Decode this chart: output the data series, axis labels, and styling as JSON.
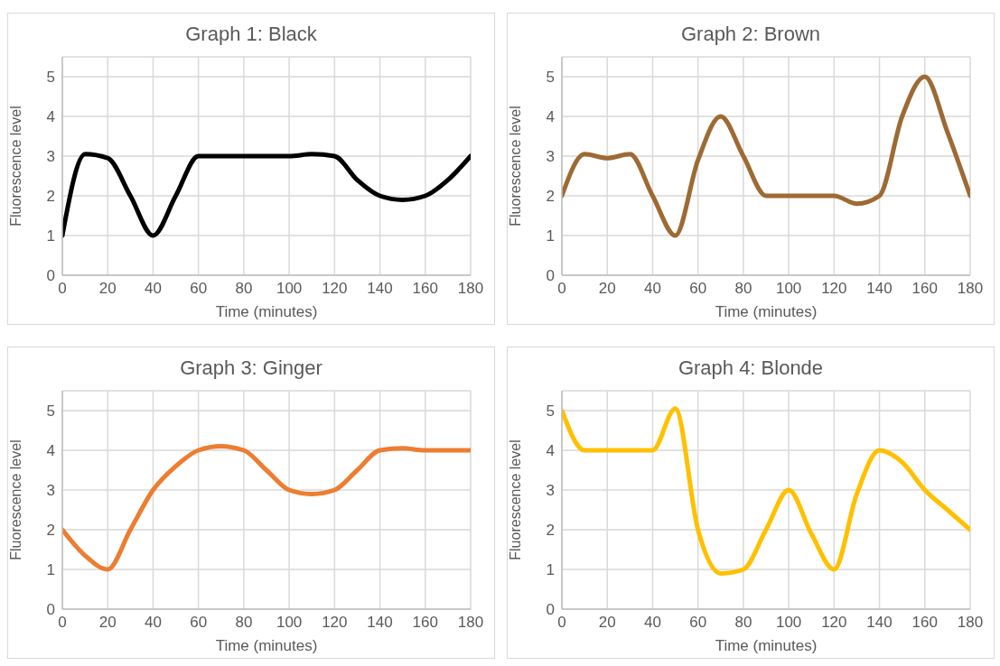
{
  "chart_data": [
    {
      "type": "line",
      "title": "Graph 1: Black",
      "xlabel": "Time (minutes)",
      "ylabel": "Fluorescence level",
      "x": [
        0,
        10,
        20,
        30,
        40,
        50,
        60,
        70,
        80,
        90,
        100,
        110,
        120,
        130,
        140,
        150,
        160,
        170,
        180
      ],
      "xlim": [
        0,
        180
      ],
      "xticks": [
        0,
        20,
        40,
        60,
        80,
        100,
        120,
        140,
        160,
        180
      ],
      "ylim": [
        0,
        5.5
      ],
      "yticks": [
        0,
        1,
        2,
        3,
        4,
        5
      ],
      "grid": true,
      "marker": "none",
      "line_style": "solid",
      "series": [
        {
          "color": "#000000",
          "values": [
            1,
            3.05,
            2.95,
            2,
            1,
            2,
            3,
            3,
            3,
            3,
            3,
            3.05,
            3,
            2.4,
            2,
            1.9,
            2,
            2.4,
            3
          ]
        }
      ]
    },
    {
      "type": "line",
      "title": "Graph 2: Brown",
      "xlabel": "Time (minutes)",
      "ylabel": "Fluorescence level",
      "x": [
        0,
        10,
        20,
        30,
        40,
        50,
        60,
        70,
        80,
        90,
        100,
        110,
        120,
        130,
        140,
        150,
        160,
        170,
        180
      ],
      "xlim": [
        0,
        180
      ],
      "xticks": [
        0,
        20,
        40,
        60,
        80,
        100,
        120,
        140,
        160,
        180
      ],
      "ylim": [
        0,
        5.5
      ],
      "yticks": [
        0,
        1,
        2,
        3,
        4,
        5
      ],
      "grid": true,
      "marker": "none",
      "line_style": "solid",
      "series": [
        {
          "color": "#9e6a34",
          "values": [
            2,
            3.05,
            2.95,
            3.05,
            2,
            1,
            2.9,
            4,
            3,
            2,
            2,
            2,
            2,
            1.8,
            2,
            4,
            5,
            3.6,
            2
          ]
        }
      ]
    },
    {
      "type": "line",
      "title": "Graph 3: Ginger",
      "xlabel": "Time (minutes)",
      "ylabel": "Fluorescence level",
      "x": [
        0,
        10,
        20,
        30,
        40,
        50,
        60,
        70,
        80,
        90,
        100,
        110,
        120,
        130,
        140,
        150,
        160,
        170,
        180
      ],
      "xlim": [
        0,
        180
      ],
      "xticks": [
        0,
        20,
        40,
        60,
        80,
        100,
        120,
        140,
        160,
        180
      ],
      "ylim": [
        0,
        5.5
      ],
      "yticks": [
        0,
        1,
        2,
        3,
        4,
        5
      ],
      "grid": true,
      "marker": "none",
      "line_style": "solid",
      "series": [
        {
          "color": "#ed7d31",
          "values": [
            2,
            1.35,
            1,
            2,
            3,
            3.6,
            4,
            4.1,
            4,
            3.5,
            3,
            2.9,
            3,
            3.5,
            4,
            4.05,
            4,
            4,
            4
          ]
        }
      ]
    },
    {
      "type": "line",
      "title": "Graph 4: Blonde",
      "xlabel": "Time (minutes)",
      "ylabel": "Fluorescence level",
      "x": [
        0,
        10,
        20,
        30,
        40,
        50,
        60,
        70,
        80,
        90,
        100,
        110,
        120,
        130,
        140,
        150,
        160,
        170,
        180
      ],
      "xlim": [
        0,
        180
      ],
      "xticks": [
        0,
        20,
        40,
        60,
        80,
        100,
        120,
        140,
        160,
        180
      ],
      "ylim": [
        0,
        5.5
      ],
      "yticks": [
        0,
        1,
        2,
        3,
        4,
        5
      ],
      "grid": true,
      "marker": "none",
      "line_style": "solid",
      "series": [
        {
          "color": "#ffc000",
          "values": [
            5,
            4,
            4,
            4,
            4,
            5.05,
            2,
            0.9,
            1,
            2,
            3,
            1.9,
            1,
            2.9,
            4,
            3.7,
            3,
            2.5,
            2
          ]
        }
      ]
    }
  ]
}
